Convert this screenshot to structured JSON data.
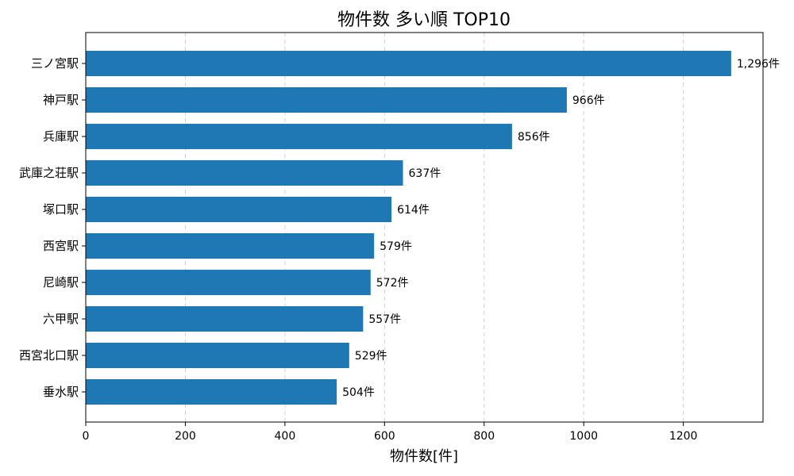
{
  "chart_data": {
    "type": "bar",
    "orientation": "horizontal",
    "title": "物件数 多い順 TOP10",
    "xlabel": "物件数[件]",
    "ylabel": "",
    "categories": [
      "三ノ宮駅",
      "神戸駅",
      "兵庫駅",
      "武庫之荘駅",
      "塚口駅",
      "西宮駅",
      "尼崎駅",
      "六甲駅",
      "西宮北口駅",
      "垂水駅"
    ],
    "values": [
      1296,
      966,
      856,
      637,
      614,
      579,
      572,
      557,
      529,
      504
    ],
    "data_labels": [
      "1,296件",
      "966件",
      "856件",
      "637件",
      "614件",
      "579件",
      "572件",
      "557件",
      "529件",
      "504件"
    ],
    "xlim": [
      0,
      1360
    ],
    "xticks": [
      0,
      200,
      400,
      600,
      800,
      1000,
      1200
    ],
    "xtick_labels": [
      "0",
      "200",
      "400",
      "600",
      "800",
      "1000",
      "1200"
    ],
    "grid": "x-dashed",
    "bar_color": "#1f77b4"
  }
}
